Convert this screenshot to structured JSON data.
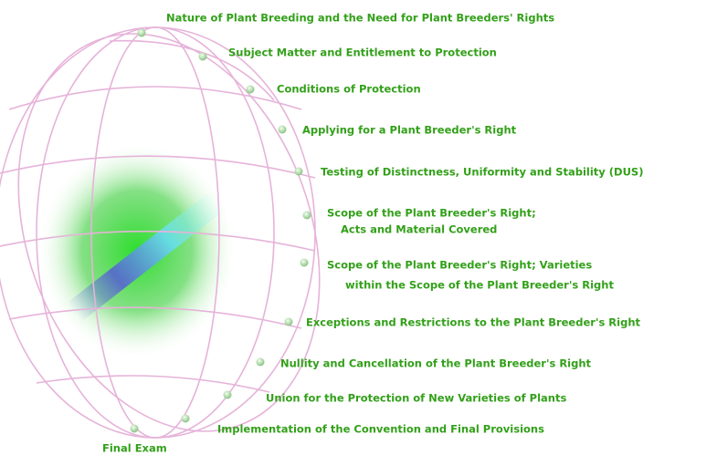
{
  "menu": {
    "items": [
      {
        "lines": [
          "Nature of Plant Breeding and the Need for Plant Breeders' Rights"
        ]
      },
      {
        "lines": [
          "Subject Matter and Entitlement to Protection"
        ]
      },
      {
        "lines": [
          "Conditions of Protection"
        ]
      },
      {
        "lines": [
          "Applying for a Plant Breeder's Right"
        ]
      },
      {
        "lines": [
          "Testing of Distinctness, Uniformity and Stability (DUS)"
        ]
      },
      {
        "lines": [
          "Scope of the Plant Breeder's Right;",
          "Acts and Material Covered"
        ]
      },
      {
        "lines": [
          "Scope of the Plant Breeder's Right; Varieties",
          "within the Scope of the Plant Breeder's Right"
        ]
      },
      {
        "lines": [
          "Exceptions and Restrictions to the Plant Breeder's Right"
        ]
      },
      {
        "lines": [
          "Nullity and Cancellation of the Plant Breeder's Right"
        ]
      },
      {
        "lines": [
          "Union for the Protection of New Varieties of Plants"
        ]
      },
      {
        "lines": [
          "Implementation of the Convention and Final Provisions"
        ]
      },
      {
        "lines": [
          "Final Exam"
        ]
      }
    ]
  }
}
